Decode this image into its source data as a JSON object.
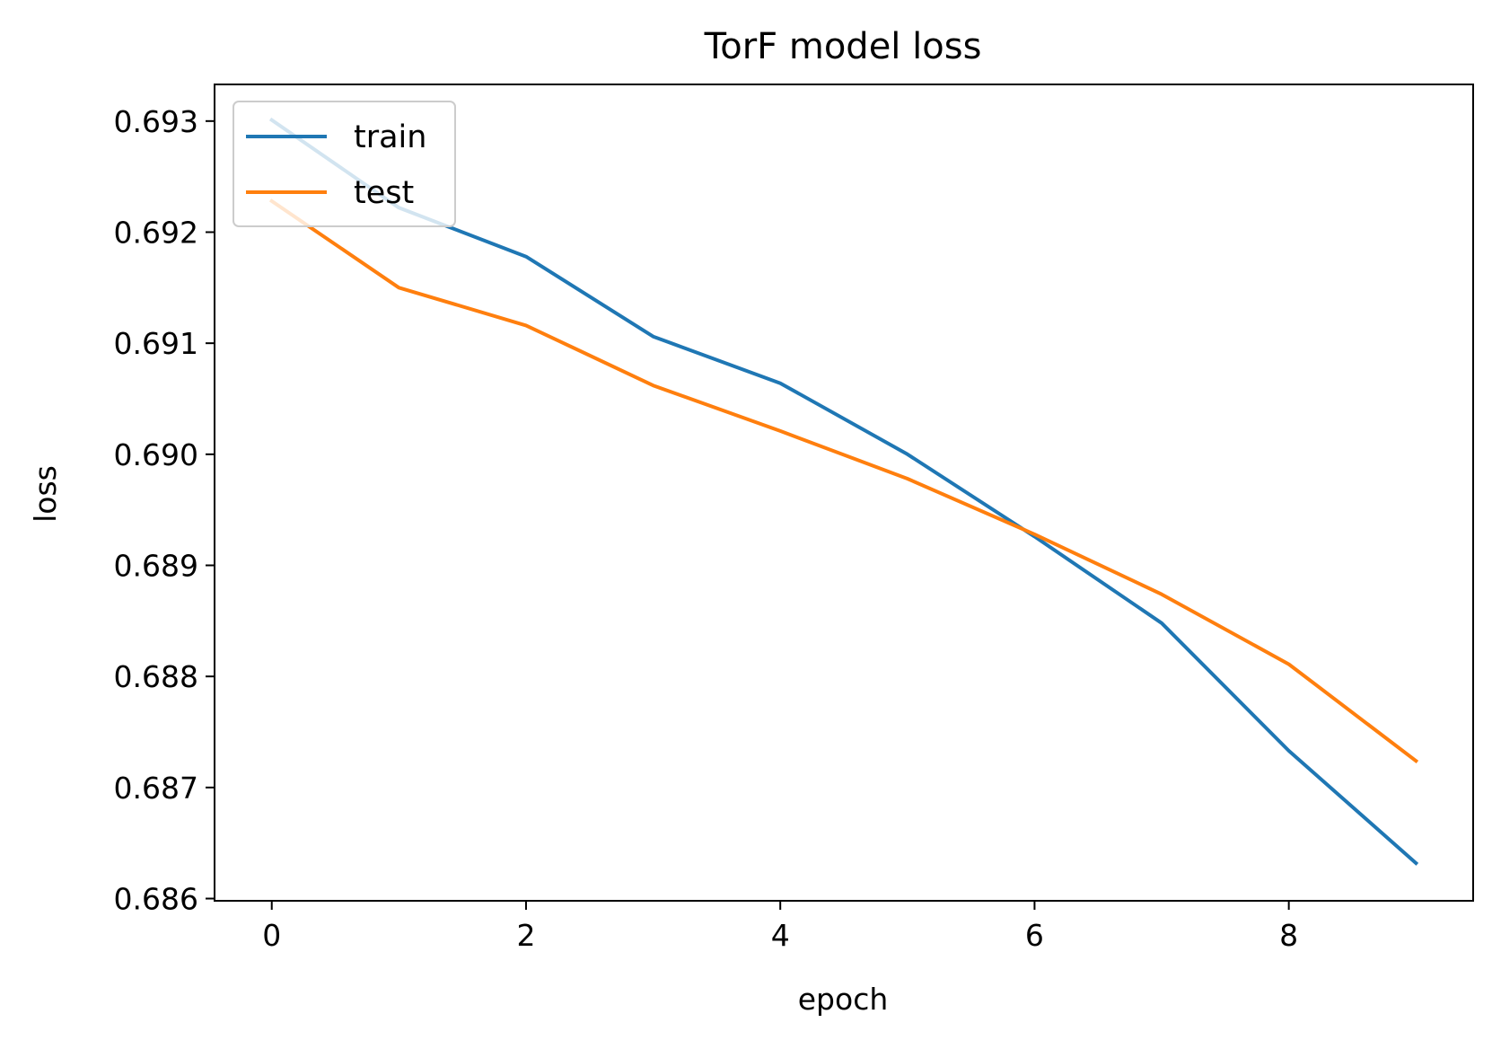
{
  "chart_data": {
    "type": "line",
    "title": "TorF model loss",
    "xlabel": "epoch",
    "ylabel": "loss",
    "x": [
      0,
      1,
      2,
      3,
      4,
      5,
      6,
      7,
      8,
      9
    ],
    "xlim": [
      -0.45,
      9.45
    ],
    "ylim": [
      0.68598,
      0.69333
    ],
    "xticks": [
      0,
      2,
      4,
      6,
      8
    ],
    "xtick_labels": [
      "0",
      "2",
      "4",
      "6",
      "8"
    ],
    "yticks": [
      0.686,
      0.687,
      0.688,
      0.689,
      0.69,
      0.691,
      0.692,
      0.693
    ],
    "ytick_labels": [
      "0.686",
      "0.687",
      "0.688",
      "0.689",
      "0.690",
      "0.691",
      "0.692",
      "0.693"
    ],
    "grid": false,
    "legend_position": "upper left",
    "series": [
      {
        "name": "train",
        "color": "#1f77b4",
        "values": [
          0.69301,
          0.69222,
          0.69178,
          0.69106,
          0.69064,
          0.69,
          0.68926,
          0.68848,
          0.68733,
          0.68632
        ]
      },
      {
        "name": "test",
        "color": "#ff7f0e",
        "values": [
          0.69228,
          0.6915,
          0.69116,
          0.69062,
          0.69021,
          0.68978,
          0.68928,
          0.68874,
          0.68811,
          0.68724
        ]
      }
    ]
  }
}
